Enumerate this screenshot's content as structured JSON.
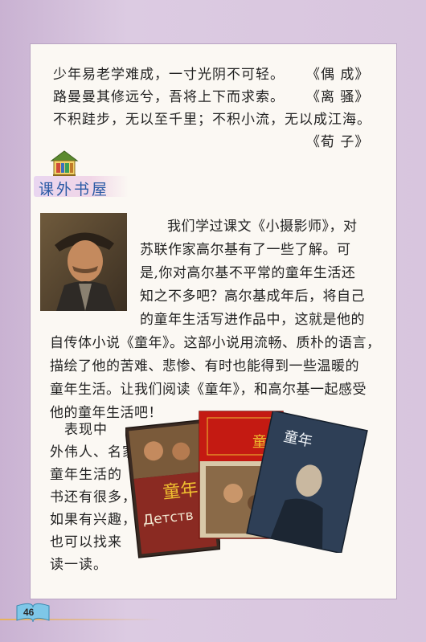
{
  "quotes": [
    {
      "text": "少年易老学难成，一寸光阴不可轻。",
      "source": "《偶 成》"
    },
    {
      "text": "路曼曼其修远兮，吾将上下而求索。",
      "source": "《离 骚》"
    },
    {
      "text": "不积跬步，无以至千里；不积小流，无以成江海。",
      "source": ""
    },
    {
      "text": "",
      "source": "《荀 子》"
    }
  ],
  "section": {
    "title": "课外书屋"
  },
  "article": {
    "lines": [
      "我们学过课文《小摄影师》，对",
      "苏联作家高尔基有了一些了解。可",
      "是,你对高尔基不平常的童年生活还",
      "知之不多吧？高尔基成年后，将自己",
      "的童年生活写进作品中，这就是他的",
      "自传体小说《童年》。这部小说用流畅、质朴的语言，",
      "描绘了他的苦难、悲惨、有时也能得到一些温暖的",
      "童年生活。让我们阅读《童年》，和高尔基一起感受",
      "他的童年生活吧！"
    ]
  },
  "sidebar_note": {
    "lines": [
      "表现中",
      "外伟人、名家",
      "童年生活的",
      "书还有很多，",
      "如果有兴趣，",
      "也可以找来",
      "读一读。"
    ]
  },
  "books": [
    {
      "title": "童年",
      "subtitle": "Детств"
    },
    {
      "title": "童年"
    },
    {
      "title": "童年"
    }
  ],
  "footer": {
    "page_number": "46"
  },
  "colors": {
    "accent": "#2a5aa5",
    "page_bg": "#fbf8f3",
    "frame": "#d8c4de"
  }
}
